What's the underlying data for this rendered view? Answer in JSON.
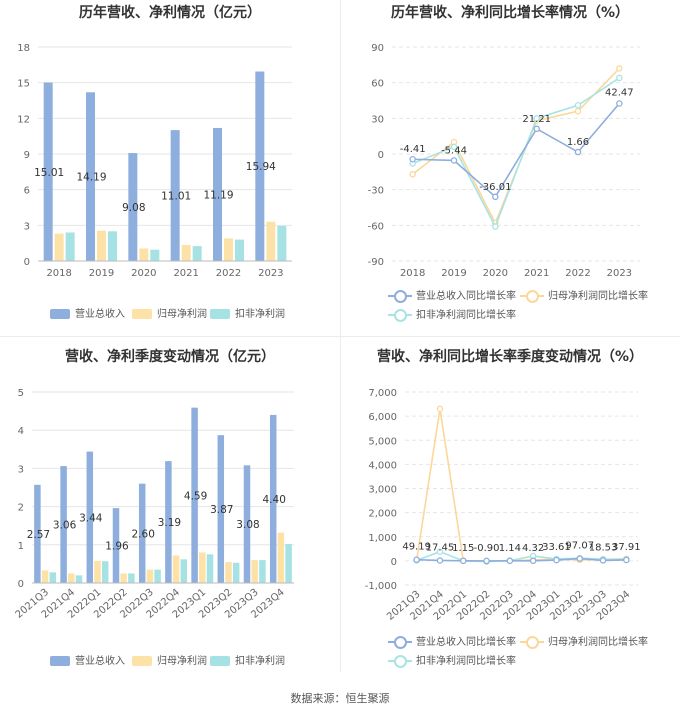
{
  "colors": {
    "revenue": "#8eaedd",
    "net": "#fde2a8",
    "deducted": "#a6e2e3",
    "revenue_line": "#8eaedd",
    "net_line": "#fcd79a",
    "deducted_line": "#a8e3e6",
    "axis": "#999999",
    "grid": "#e6e6e6",
    "text": "#333333"
  },
  "source": "数据来源：恒生聚源",
  "chart_data": [
    {
      "id": "annual-bar",
      "type": "bar",
      "title": "历年营收、净利情况（亿元）",
      "categories": [
        "2018",
        "2019",
        "2020",
        "2021",
        "2022",
        "2023"
      ],
      "ylim": [
        0,
        18
      ],
      "yticks": [
        0,
        3,
        6,
        9,
        12,
        15,
        18
      ],
      "series": [
        {
          "name": "营业总收入",
          "values": [
            15.01,
            14.19,
            9.08,
            11.01,
            11.19,
            15.94
          ],
          "labels": [
            "15.01",
            "14.19",
            "9.08",
            "11.01",
            "11.19",
            "15.94"
          ]
        },
        {
          "name": "归母净利润",
          "values": [
            2.3,
            2.55,
            1.05,
            1.35,
            1.9,
            3.3
          ]
        },
        {
          "name": "扣非净利润",
          "values": [
            2.4,
            2.5,
            0.95,
            1.25,
            1.8,
            2.95
          ]
        }
      ]
    },
    {
      "id": "annual-line",
      "type": "line",
      "title": "历年营收、净利同比增长率情况（%）",
      "categories": [
        "2018",
        "2019",
        "2020",
        "2021",
        "2022",
        "2023"
      ],
      "ylim": [
        -90,
        90
      ],
      "yticks": [
        -90,
        -60,
        -30,
        0,
        30,
        60,
        90
      ],
      "series": [
        {
          "name": "营业总收入同比增长率",
          "values": [
            -4.41,
            -5.44,
            -36.01,
            21.21,
            1.66,
            42.47
          ],
          "labels": [
            "-4.41",
            "-5.44",
            "-36.01",
            "21.21",
            "1.66",
            "42.47"
          ]
        },
        {
          "name": "归母净利润同比增长率",
          "values": [
            -17,
            10,
            -58,
            28,
            36,
            72
          ]
        },
        {
          "name": "扣非净利润同比增长率",
          "values": [
            -8,
            6,
            -61,
            30,
            41,
            64
          ]
        }
      ]
    },
    {
      "id": "quarter-bar",
      "type": "bar",
      "title": "营收、净利季度变动情况（亿元）",
      "categories": [
        "2021Q3",
        "2021Q4",
        "2022Q1",
        "2022Q2",
        "2022Q3",
        "2022Q4",
        "2023Q1",
        "2023Q2",
        "2023Q3",
        "2023Q4"
      ],
      "ylim": [
        0,
        5
      ],
      "yticks": [
        0,
        1,
        2,
        3,
        4,
        5
      ],
      "series": [
        {
          "name": "营业总收入",
          "values": [
            2.57,
            3.06,
            3.44,
            1.96,
            2.6,
            3.19,
            4.59,
            3.87,
            3.08,
            4.4
          ],
          "labels": [
            "2.57",
            "3.06",
            "3.44",
            "1.96",
            "2.60",
            "3.19",
            "4.59",
            "3.87",
            "3.08",
            "4.40"
          ]
        },
        {
          "name": "归母净利润",
          "values": [
            0.33,
            0.25,
            0.58,
            0.25,
            0.35,
            0.72,
            0.8,
            0.55,
            0.6,
            1.32
          ]
        },
        {
          "name": "扣非净利润",
          "values": [
            0.28,
            0.2,
            0.57,
            0.25,
            0.35,
            0.62,
            0.75,
            0.53,
            0.6,
            1.02
          ]
        }
      ]
    },
    {
      "id": "quarter-line",
      "type": "line",
      "title": "营收、净利同比增长率季度变动情况（%）",
      "categories": [
        "2021Q3",
        "2021Q4",
        "2022Q1",
        "2022Q2",
        "2022Q3",
        "2022Q4",
        "2023Q1",
        "2023Q2",
        "2023Q3",
        "2023Q4"
      ],
      "ylim": [
        -1000,
        7000
      ],
      "yticks": [
        -1000,
        0,
        1000,
        2000,
        3000,
        4000,
        5000,
        6000,
        7000
      ],
      "ytick_labels": [
        "-1,000",
        "0",
        "1,000",
        "2,000",
        "3,000",
        "4,000",
        "5,000",
        "6,000",
        "7,000"
      ],
      "series": [
        {
          "name": "营业总收入同比增长率",
          "values": [
            49.19,
            17.45,
            1.15,
            -0.9,
            1.14,
            4.32,
            33.61,
            97.07,
            18.53,
            37.91
          ],
          "labels": [
            "49.19",
            "17.45",
            "1.15",
            "-0.90",
            "1.14",
            "4.32",
            "33.61",
            "97.07",
            "18.53",
            "37.91"
          ]
        },
        {
          "name": "归母净利润同比增长率",
          "values": [
            30,
            6300,
            5,
            -20,
            10,
            40,
            70,
            40,
            60,
            90
          ]
        },
        {
          "name": "扣非净利润同比增长率",
          "values": [
            20,
            380,
            0,
            -30,
            10,
            200,
            80,
            110,
            70,
            60
          ]
        }
      ]
    }
  ]
}
